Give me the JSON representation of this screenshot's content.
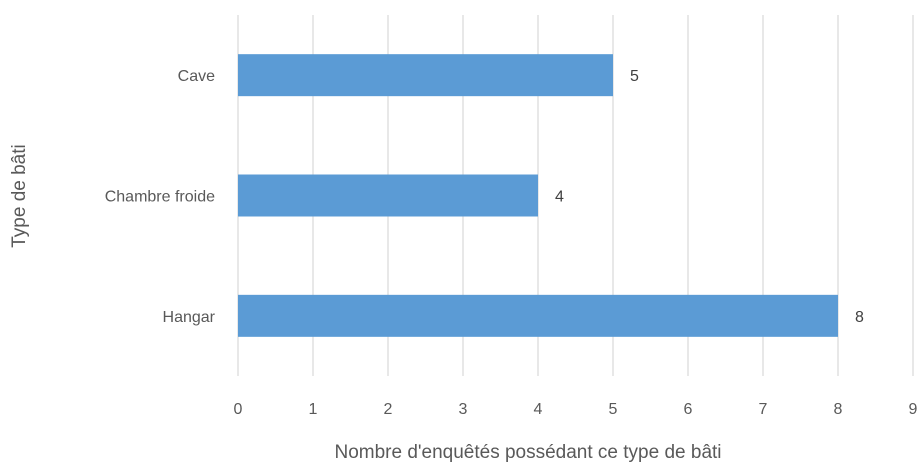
{
  "chart_data": {
    "type": "bar",
    "orientation": "horizontal",
    "categories": [
      "Hangar",
      "Chambre froide",
      "Cave"
    ],
    "values": [
      8,
      4,
      5
    ],
    "xlabel": "Nombre d'enquêtés possédant ce type de bâti",
    "ylabel": "Type de bâti",
    "xlim": [
      0,
      9
    ],
    "xticks": [
      0,
      1,
      2,
      3,
      4,
      5,
      6,
      7,
      8,
      9
    ],
    "grid": "vertical",
    "data_labels": true,
    "legend": "none",
    "bar_color": "#5B9BD5",
    "grid_color": "#D9D9D9"
  }
}
